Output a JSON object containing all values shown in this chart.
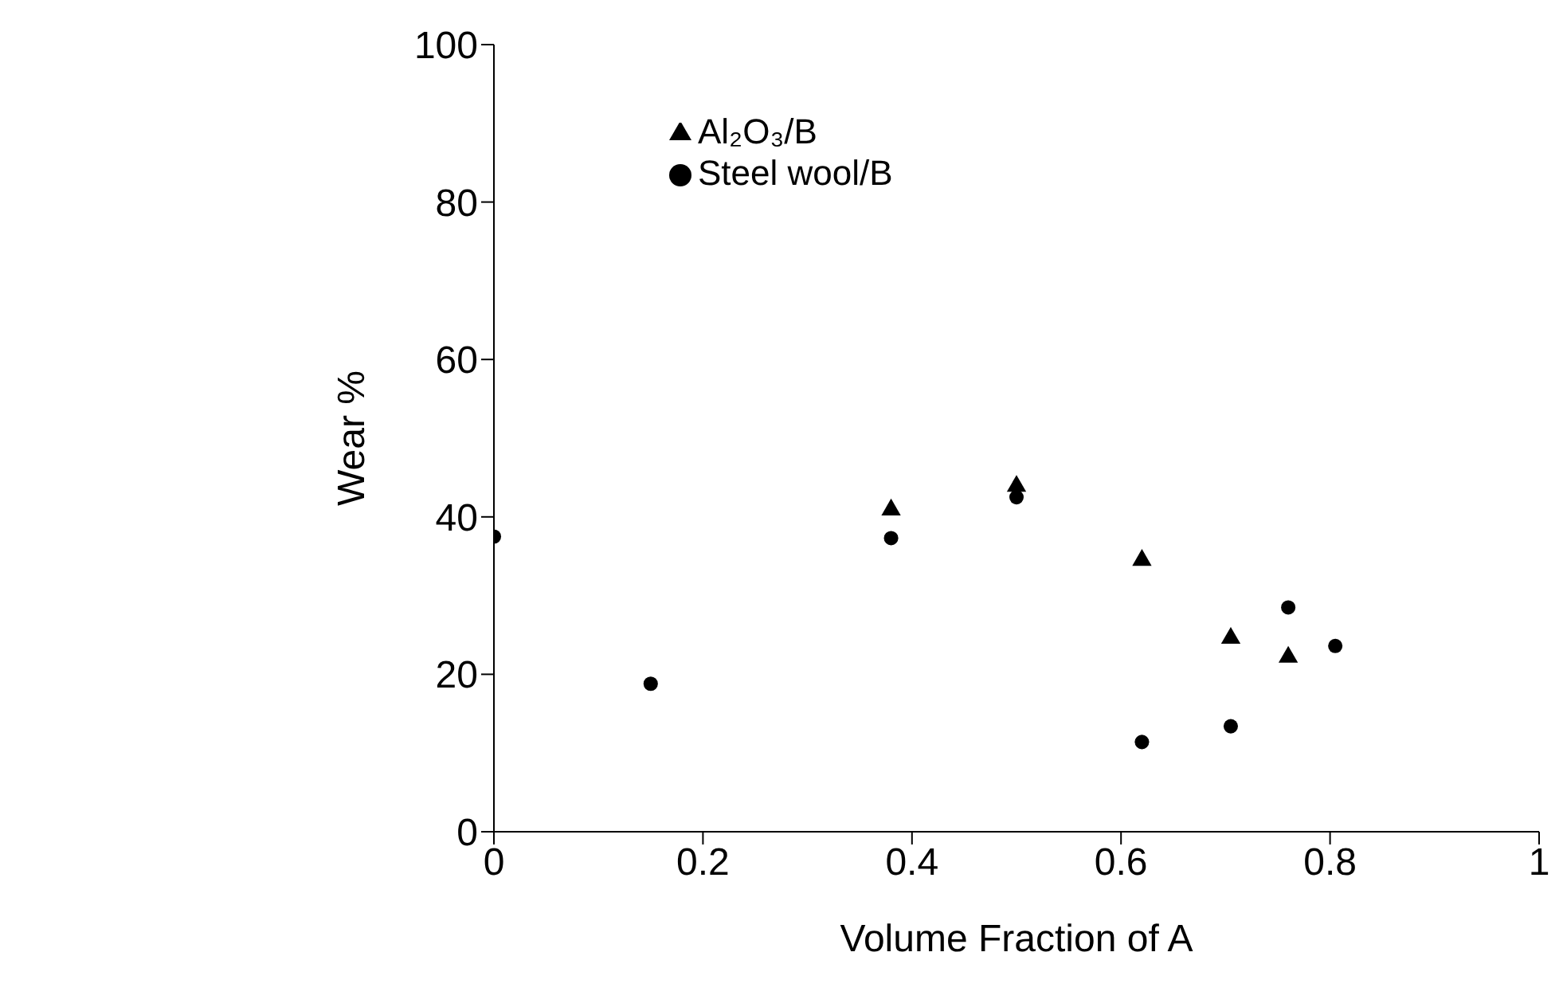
{
  "chart_data": {
    "type": "scatter",
    "xlabel": "Volume Fraction of A",
    "ylabel": "Wear %",
    "xlim": [
      0,
      1
    ],
    "xticks": [
      0,
      0.2,
      0.4,
      0.6,
      0.8,
      1
    ],
    "ylim": [
      0,
      100
    ],
    "yticks": [
      0,
      20,
      40,
      60,
      80,
      100
    ],
    "grid": false,
    "legend": "top",
    "series": [
      {
        "name": "Steel wool/B",
        "color": "#000000",
        "marker": "circle",
        "x": [
          0,
          0.15,
          0.38,
          0.5,
          0.62,
          0.705,
          0.76,
          0.805
        ],
        "values": [
          37.5,
          18.8,
          37.3,
          42.5,
          11.4,
          13.4,
          28.5,
          23.6
        ]
      },
      {
        "name": "Al₂O₃/B",
        "color": "#000000",
        "marker": "triangle",
        "x": [
          0.38,
          0.5,
          0.62,
          0.705,
          0.76
        ],
        "values": [
          40.9,
          43.9,
          34.5,
          24.6,
          22.2
        ]
      }
    ]
  }
}
